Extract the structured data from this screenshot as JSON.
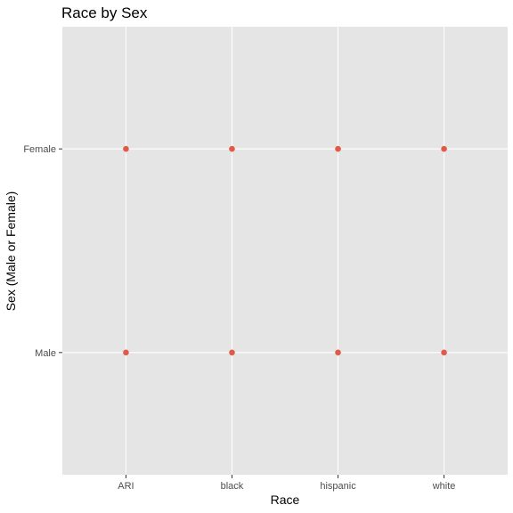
{
  "chart_data": {
    "type": "scatter",
    "title": "Race by Sex",
    "xlabel": "Race",
    "ylabel": "Sex (Male or Female)",
    "x_categories": [
      "ARI",
      "black",
      "hispanic",
      "white"
    ],
    "y_categories": [
      "Male",
      "Female"
    ],
    "points": [
      {
        "x": "ARI",
        "y": "Female"
      },
      {
        "x": "black",
        "y": "Female"
      },
      {
        "x": "hispanic",
        "y": "Female"
      },
      {
        "x": "white",
        "y": "Female"
      },
      {
        "x": "ARI",
        "y": "Male"
      },
      {
        "x": "black",
        "y": "Male"
      },
      {
        "x": "hispanic",
        "y": "Male"
      },
      {
        "x": "white",
        "y": "Male"
      }
    ],
    "grid": true,
    "legend": "none",
    "colors": {
      "panel_background": "#e5e5e5",
      "grid": "#ffffff",
      "point": "#e05a47"
    }
  }
}
